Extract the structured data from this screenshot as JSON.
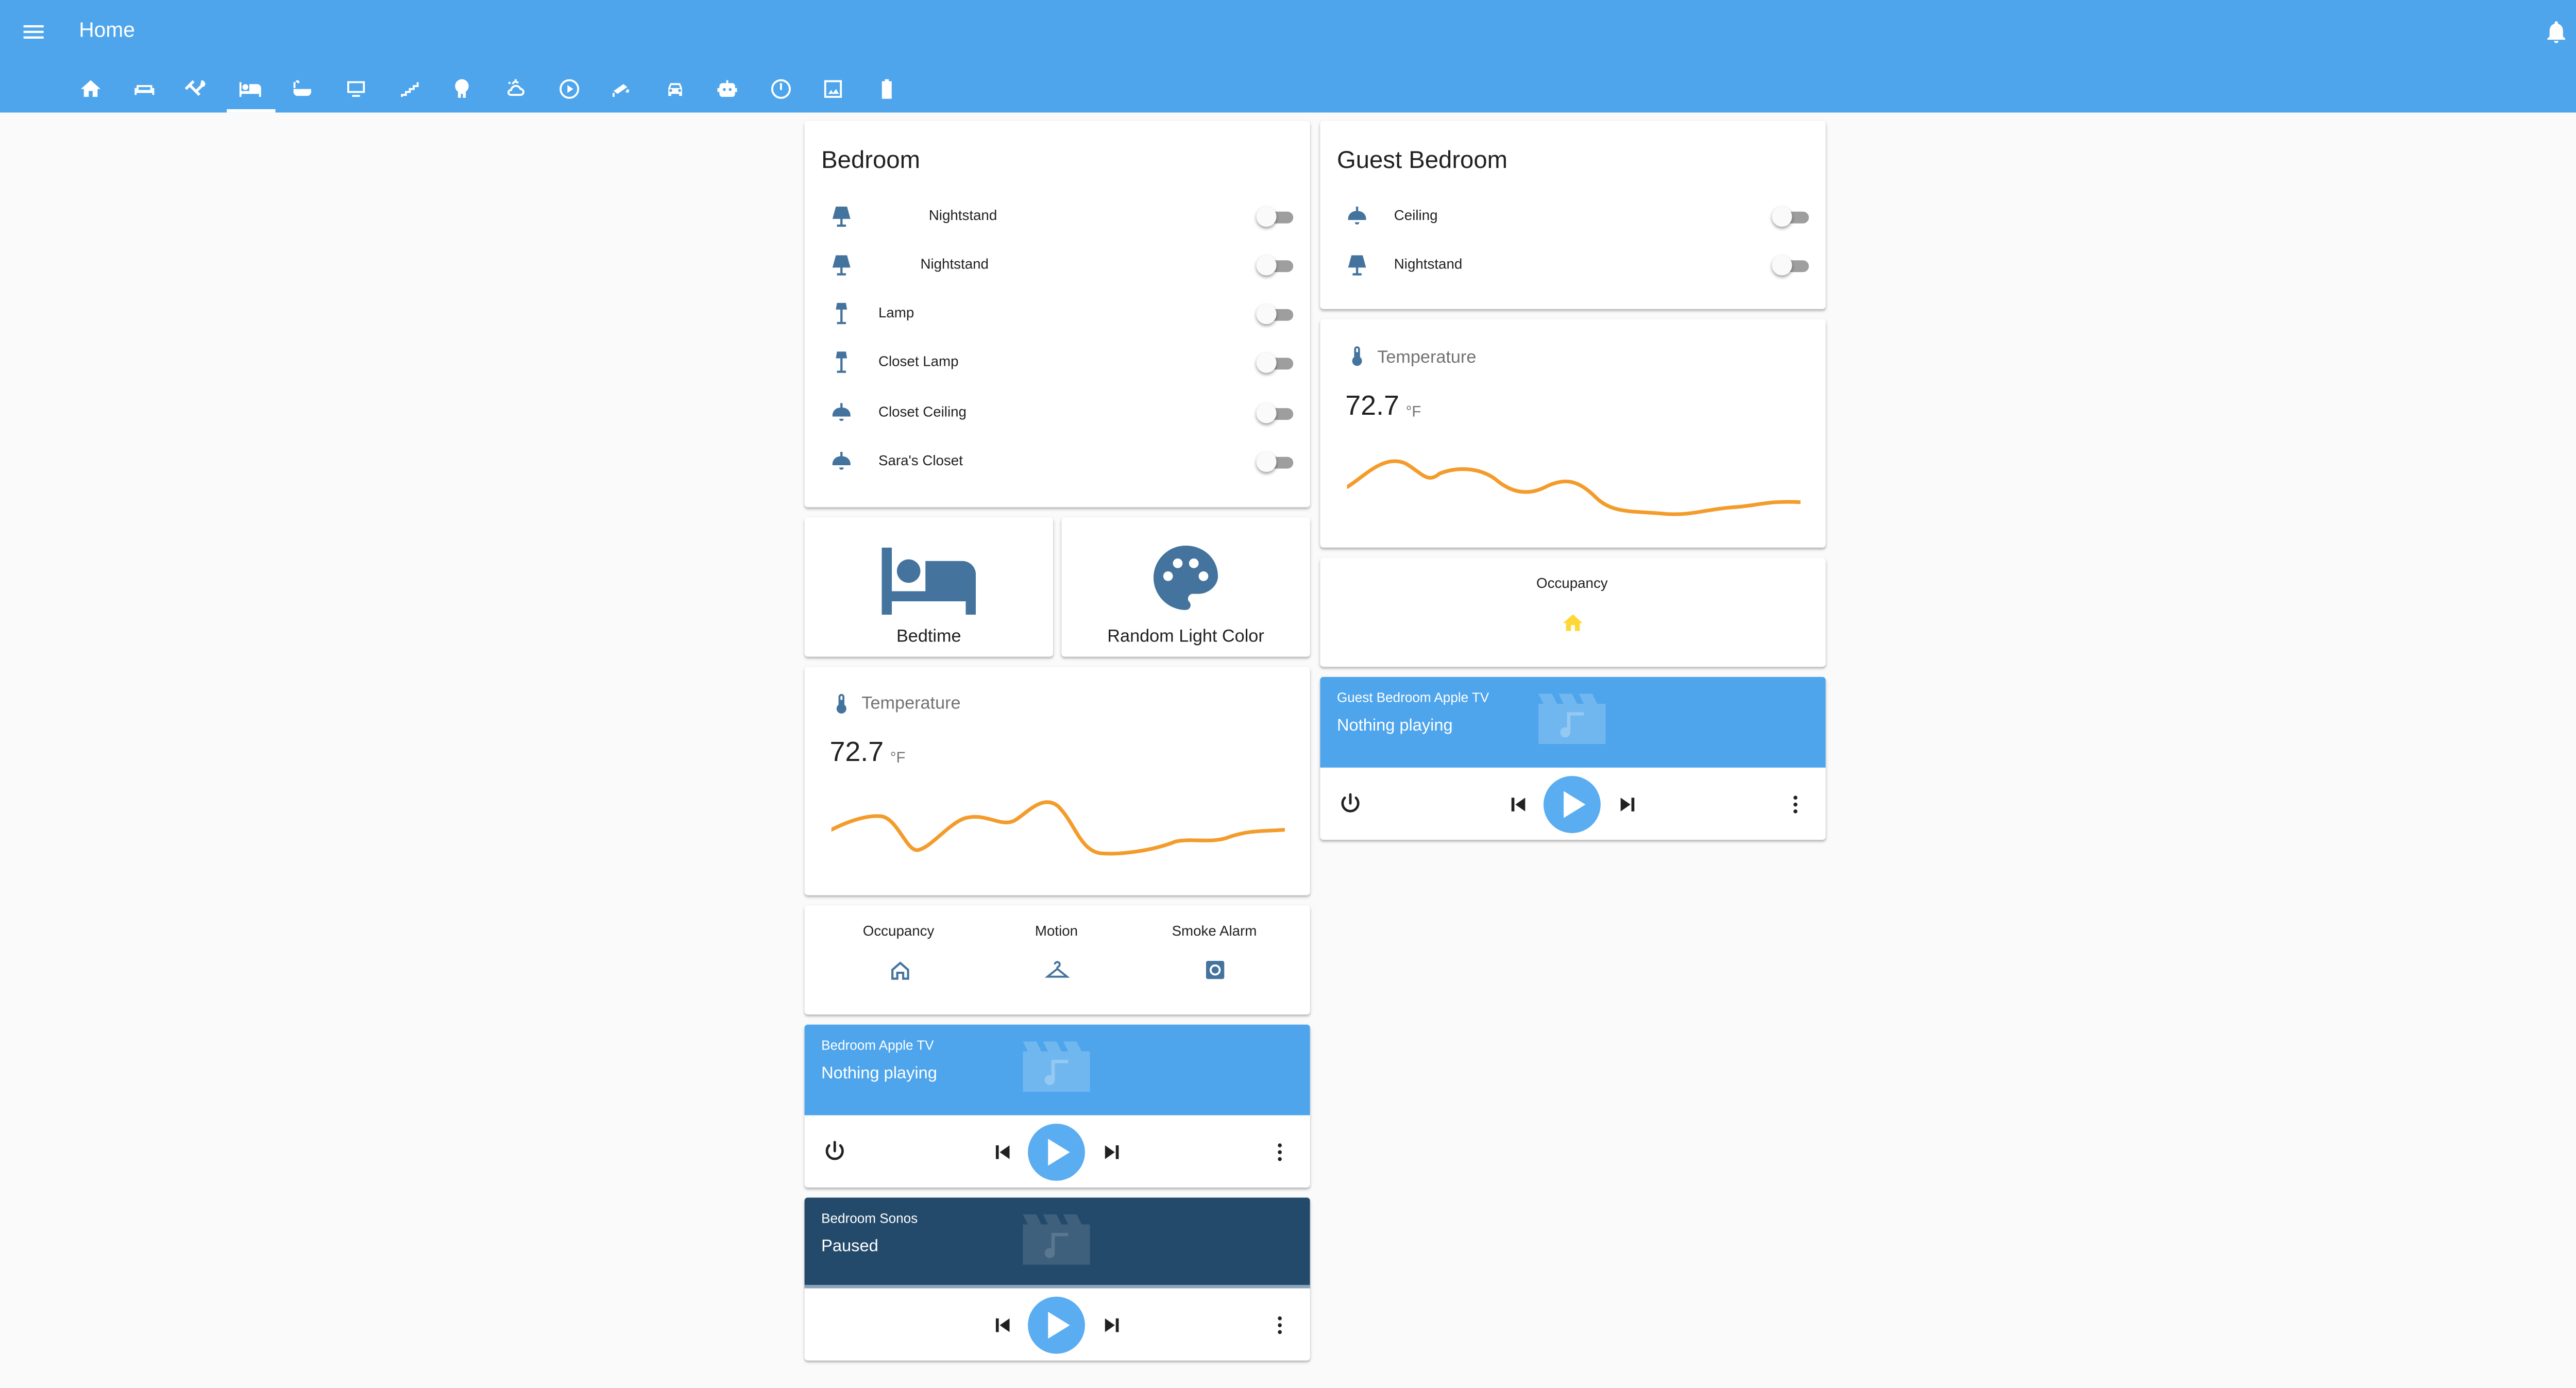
{
  "header": {
    "title": "Home",
    "menu_icon": "menu-icon",
    "notifications_icon": "bell-icon",
    "overflow_icon": "dots-vertical-icon",
    "background_color": "#4ea5ec"
  },
  "tabs": [
    {
      "icon": "home-icon"
    },
    {
      "icon": "sofa-icon"
    },
    {
      "icon": "silverware-icon"
    },
    {
      "icon": "bed-icon",
      "active": true
    },
    {
      "icon": "bathtub-icon"
    },
    {
      "icon": "monitor-icon"
    },
    {
      "icon": "stairs-icon"
    },
    {
      "icon": "tree-icon"
    },
    {
      "icon": "weather-partly-cloudy-icon"
    },
    {
      "icon": "play-circle-icon"
    },
    {
      "icon": "cctv-icon"
    },
    {
      "icon": "car-icon"
    },
    {
      "icon": "robot-icon"
    },
    {
      "icon": "gauge-icon"
    },
    {
      "icon": "image-icon"
    },
    {
      "icon": "battery-icon"
    }
  ],
  "bedroom": {
    "title": "Bedroom",
    "lights": [
      {
        "name": "Nightstand",
        "icon": "lamp-icon",
        "on": false
      },
      {
        "name": "Nightstand",
        "icon": "lamp-icon",
        "on": false
      },
      {
        "name": "Lamp",
        "icon": "floor-lamp-icon",
        "on": false
      },
      {
        "name": "Closet Lamp",
        "icon": "floor-lamp-icon",
        "on": false
      },
      {
        "name": "Closet Ceiling",
        "icon": "ceiling-light-icon",
        "on": false
      },
      {
        "name": "Sara's Closet",
        "icon": "ceiling-light-icon",
        "on": false
      }
    ],
    "buttons": [
      {
        "label": "Bedtime",
        "icon": "bed-icon"
      },
      {
        "label": "Random Light Color",
        "icon": "palette-icon"
      }
    ],
    "temperature": {
      "name": "Temperature",
      "value": "72.7",
      "unit": "°F",
      "icon": "thermometer-icon",
      "line_color": "#f39c2b"
    },
    "glance": [
      {
        "name": "Occupancy",
        "icon": "home-outline-icon"
      },
      {
        "name": "Motion",
        "icon": "hanger-icon"
      },
      {
        "name": "Smoke Alarm",
        "icon": "smoke-detector-icon"
      }
    ],
    "apple_tv": {
      "name": "Bedroom Apple TV",
      "state": "Nothing playing",
      "color": "#4ea5ec"
    },
    "sonos": {
      "name": "Bedroom Sonos",
      "state": "Paused",
      "color": "#244a6b"
    }
  },
  "guest_bedroom": {
    "title": "Guest Bedroom",
    "lights": [
      {
        "name": "Ceiling",
        "icon": "ceiling-light-icon",
        "on": false
      },
      {
        "name": "Nightstand",
        "icon": "lamp-icon",
        "on": false
      }
    ],
    "temperature": {
      "name": "Temperature",
      "value": "72.7",
      "unit": "°F",
      "icon": "thermometer-icon",
      "line_color": "#f39c2b"
    },
    "occupancy": {
      "name": "Occupancy",
      "icon": "home-icon",
      "color": "#fdd835"
    },
    "apple_tv": {
      "name": "Guest Bedroom Apple TV",
      "state": "Nothing playing",
      "color": "#4ea5ec"
    }
  },
  "colors": {
    "state_icon": "#44739e",
    "accent": "#5aadf1",
    "page_bg": "#fafafa"
  }
}
